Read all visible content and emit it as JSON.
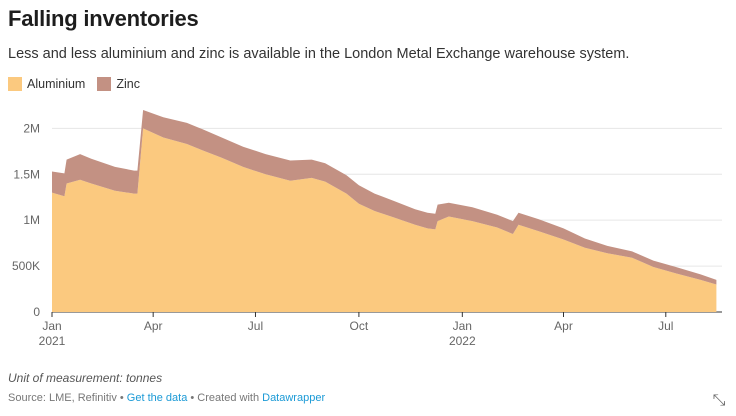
{
  "title": "Falling inventories",
  "subtitle": "Less and less aluminium and zinc is available in the London Metal Exchange warehouse system.",
  "legend": [
    {
      "label": "Aluminium",
      "color": "#fbc97f"
    },
    {
      "label": "Zinc",
      "color": "#c39183"
    }
  ],
  "note": "Unit of measurement: tonnes",
  "source": {
    "prefix": "Source: LME, Refinitiv • ",
    "get_data": "Get the data",
    "middle": " • Created with ",
    "tool": "Datawrapper"
  },
  "expand_icon": "expand-icon",
  "chart_data": {
    "type": "area",
    "stacked": true,
    "unit": "tonnes",
    "y_ticks": [
      {
        "value": 0,
        "label": "0"
      },
      {
        "value": 500000,
        "label": "500K"
      },
      {
        "value": 1000000,
        "label": "1M"
      },
      {
        "value": 1500000,
        "label": "1.5M"
      },
      {
        "value": 2000000,
        "label": "2M"
      }
    ],
    "ylim": [
      0,
      2200000
    ],
    "x_ticks": [
      {
        "date": "2021-01-01",
        "label": "Jan",
        "sublabel": "2021"
      },
      {
        "date": "2021-04-01",
        "label": "Apr",
        "sublabel": ""
      },
      {
        "date": "2021-07-01",
        "label": "Jul",
        "sublabel": ""
      },
      {
        "date": "2021-10-01",
        "label": "Oct",
        "sublabel": ""
      },
      {
        "date": "2022-01-01",
        "label": "Jan",
        "sublabel": "2022"
      },
      {
        "date": "2022-04-01",
        "label": "Apr",
        "sublabel": ""
      },
      {
        "date": "2022-07-01",
        "label": "Jul",
        "sublabel": ""
      }
    ],
    "xlim": [
      "2021-01-01",
      "2022-08-20"
    ],
    "x": [
      "2021-01-01",
      "2021-01-12",
      "2021-01-14",
      "2021-01-26",
      "2021-02-05",
      "2021-02-26",
      "2021-03-15",
      "2021-03-18",
      "2021-03-23",
      "2021-04-10",
      "2021-05-01",
      "2021-05-15",
      "2021-06-01",
      "2021-06-20",
      "2021-07-10",
      "2021-08-01",
      "2021-08-20",
      "2021-09-01",
      "2021-09-20",
      "2021-10-01",
      "2021-10-15",
      "2021-11-01",
      "2021-11-20",
      "2021-12-01",
      "2021-12-08",
      "2021-12-10",
      "2021-12-20",
      "2022-01-10",
      "2022-02-01",
      "2022-02-15",
      "2022-02-20",
      "2022-03-10",
      "2022-04-01",
      "2022-04-20",
      "2022-05-10",
      "2022-06-01",
      "2022-06-20",
      "2022-07-10",
      "2022-08-01",
      "2022-08-15"
    ],
    "series": [
      {
        "name": "Aluminium",
        "color": "#fbc97f",
        "values": [
          1300000,
          1260000,
          1400000,
          1440000,
          1400000,
          1320000,
          1290000,
          1290000,
          2000000,
          1900000,
          1830000,
          1760000,
          1680000,
          1580000,
          1500000,
          1430000,
          1460000,
          1420000,
          1290000,
          1180000,
          1100000,
          1030000,
          950000,
          910000,
          900000,
          990000,
          1040000,
          990000,
          920000,
          850000,
          950000,
          880000,
          790000,
          700000,
          640000,
          590000,
          490000,
          420000,
          350000,
          300000
        ]
      },
      {
        "name": "Zinc",
        "color": "#c39183",
        "values": [
          230000,
          250000,
          260000,
          280000,
          270000,
          260000,
          250000,
          250000,
          200000,
          220000,
          230000,
          230000,
          220000,
          220000,
          220000,
          220000,
          200000,
          200000,
          200000,
          200000,
          190000,
          180000,
          170000,
          170000,
          170000,
          180000,
          150000,
          150000,
          140000,
          140000,
          130000,
          130000,
          120000,
          100000,
          80000,
          70000,
          70000,
          70000,
          60000,
          50000
        ]
      }
    ]
  }
}
